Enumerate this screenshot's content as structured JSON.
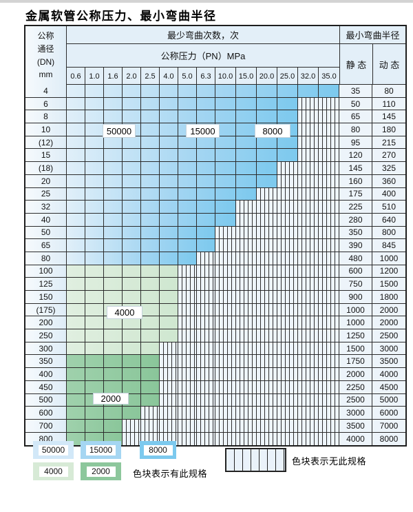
{
  "title": "金属软管公称压力、最小弯曲半径",
  "table": {
    "header": {
      "dn_lines": [
        "公称",
        "通径",
        "(DN)",
        "mm"
      ],
      "cycles": "最少弯曲次数，次",
      "pn": "公称压力（PN）MPa",
      "radius": "最小弯曲半径",
      "static": "静 态",
      "dynamic": "动 态"
    },
    "columns": [
      "0.6",
      "1.0",
      "1.6",
      "2.0",
      "2.5",
      "4.0",
      "5.0",
      "6.3",
      "10.0",
      "15.0",
      "20.0",
      "25.0",
      "32.0",
      "35.0"
    ],
    "rows": [
      {
        "dn": "4",
        "pn_max": "35.0",
        "zone": "blue",
        "static": "35",
        "dynamic": "80"
      },
      {
        "dn": "6",
        "pn_max": "25.0",
        "zone": "blue",
        "static": "50",
        "dynamic": "110"
      },
      {
        "dn": "8",
        "pn_max": "25.0",
        "zone": "blue",
        "static": "65",
        "dynamic": "145"
      },
      {
        "dn": "10",
        "pn_max": "25.0",
        "zone": "blue",
        "static": "80",
        "dynamic": "180"
      },
      {
        "dn": "(12)",
        "pn_max": "25.0",
        "zone": "blue",
        "static": "95",
        "dynamic": "215"
      },
      {
        "dn": "15",
        "pn_max": "25.0",
        "zone": "blue",
        "static": "120",
        "dynamic": "270"
      },
      {
        "dn": "(18)",
        "pn_max": "20.0",
        "zone": "blue",
        "static": "145",
        "dynamic": "325"
      },
      {
        "dn": "20",
        "pn_max": "20.0",
        "zone": "blue",
        "static": "160",
        "dynamic": "360"
      },
      {
        "dn": "25",
        "pn_max": "15.0",
        "zone": "blue",
        "static": "175",
        "dynamic": "400"
      },
      {
        "dn": "32",
        "pn_max": "10.0",
        "zone": "blue",
        "static": "225",
        "dynamic": "510"
      },
      {
        "dn": "40",
        "pn_max": "10.0",
        "zone": "blue",
        "static": "280",
        "dynamic": "640"
      },
      {
        "dn": "50",
        "pn_max": "6.3",
        "zone": "blue",
        "static": "350",
        "dynamic": "800"
      },
      {
        "dn": "65",
        "pn_max": "6.3",
        "zone": "blue",
        "static": "390",
        "dynamic": "845"
      },
      {
        "dn": "80",
        "pn_max": "5.0",
        "zone": "blue",
        "static": "480",
        "dynamic": "1000"
      },
      {
        "dn": "100",
        "pn_max": "4.0",
        "zone": "green4000",
        "static": "600",
        "dynamic": "1200"
      },
      {
        "dn": "125",
        "pn_max": "4.0",
        "zone": "green4000",
        "static": "750",
        "dynamic": "1500"
      },
      {
        "dn": "150",
        "pn_max": "4.0",
        "zone": "green4000",
        "static": "900",
        "dynamic": "1800"
      },
      {
        "dn": "(175)",
        "pn_max": "4.0",
        "zone": "green4000",
        "static": "1000",
        "dynamic": "2000"
      },
      {
        "dn": "200",
        "pn_max": "4.0",
        "zone": "green4000",
        "static": "1000",
        "dynamic": "2000"
      },
      {
        "dn": "250",
        "pn_max": "4.0",
        "zone": "green4000",
        "static": "1250",
        "dynamic": "2500"
      },
      {
        "dn": "300",
        "pn_max": "2.5",
        "zone": "green4000",
        "static": "1500",
        "dynamic": "3000"
      },
      {
        "dn": "350",
        "pn_max": "2.5",
        "zone": "green2000",
        "static": "1750",
        "dynamic": "3500"
      },
      {
        "dn": "400",
        "pn_max": "2.5",
        "zone": "green2000",
        "static": "2000",
        "dynamic": "4000"
      },
      {
        "dn": "450",
        "pn_max": "2.5",
        "zone": "green2000",
        "static": "2250",
        "dynamic": "4500"
      },
      {
        "dn": "500",
        "pn_max": "2.5",
        "zone": "green2000",
        "static": "2500",
        "dynamic": "5000"
      },
      {
        "dn": "600",
        "pn_max": "2.0",
        "zone": "green2000",
        "static": "3000",
        "dynamic": "6000"
      },
      {
        "dn": "700",
        "pn_max": "1.6",
        "zone": "green2000",
        "static": "3500",
        "dynamic": "7000"
      },
      {
        "dn": "800",
        "pn_max": "1.6",
        "zone": "green2000",
        "static": "4000",
        "dynamic": "8000"
      }
    ],
    "overlay_labels": [
      {
        "text": "50000"
      },
      {
        "text": "15000"
      },
      {
        "text": "8000"
      },
      {
        "text": "4000"
      },
      {
        "text": "2000"
      }
    ]
  },
  "legend": {
    "swatches": [
      {
        "label": "50000",
        "color": "#d2e8f8"
      },
      {
        "label": "15000",
        "color": "#a5d6f2"
      },
      {
        "label": "8000",
        "color": "#7cc9ee"
      },
      {
        "label": "4000",
        "color": "#d7ead6"
      },
      {
        "label": "2000",
        "color": "#8dc79c"
      }
    ],
    "present_caption": "色块表示有此规格",
    "absent_caption": "色块表示无此规格"
  },
  "colors": {
    "blue_light": "#e0eff9",
    "blue_mid": "#a5d6f2",
    "blue_dark": "#7cc9ee",
    "green_4000_light": "#e0efe0",
    "green_4000": "#cfe7d0",
    "green_2000_light": "#9fd1ac",
    "green_2000": "#8ac69a",
    "hatch_bg": "#eef5fb"
  }
}
